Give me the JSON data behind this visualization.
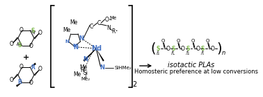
{
  "background_color": "#ffffff",
  "figsize": [
    3.78,
    1.4
  ],
  "dpi": 100,
  "color_S": "#7ab648",
  "color_R": "#4472c4",
  "color_Nd": "#4472c4",
  "color_N": "#4472c4",
  "color_black": "#000000",
  "polymer_label": "isotactic PLAs",
  "polymer_sublabel": "Homosteric preference at low conversions",
  "polymer_n": "n"
}
